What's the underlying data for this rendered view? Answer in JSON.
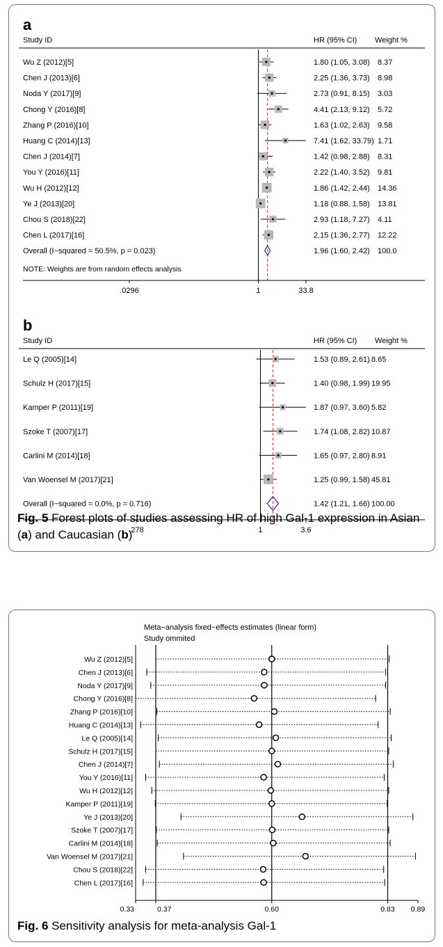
{
  "figure5": {
    "caption": {
      "figure_label": "Fig. 5",
      "parts": [
        {
          "text": "Forest plots of studies assessing HR of high Gal-1 expression in Asian (",
          "bold": false
        },
        {
          "text": "a",
          "bold": true
        },
        {
          "text": ") and Caucasian (",
          "bold": false
        },
        {
          "text": "b",
          "bold": true
        },
        {
          "text": ")",
          "bold": false
        }
      ]
    },
    "panels": [
      {
        "label": "a",
        "header_study": "Study  ID",
        "header_hr": "HR (95% CI)",
        "header_weight": "Weight %",
        "note": "NOTE: Weights are from random effects analysis",
        "axis_ticks": [
          ".0296",
          "1",
          "33.8"
        ],
        "studies": [
          {
            "name": "Wu Z (2012)[5]",
            "ci_text": "1.80 (1.05, 3.08)",
            "weight_text": "8.37"
          },
          {
            "name": "Chen J (2013)[6]",
            "ci_text": "2.25 (1.36, 3.73)",
            "weight_text": "8.98"
          },
          {
            "name": "Noda Y (2017)[9]",
            "ci_text": "2.73 (0.91, 8.15)",
            "weight_text": "3.03"
          },
          {
            "name": "Chong Y (2016)[8]",
            "ci_text": "4.41 (2.13, 9.12)",
            "weight_text": "5.72"
          },
          {
            "name": "Zhang P (2016)[10]",
            "ci_text": "1.63 (1.02, 2.63)",
            "weight_text": "9.58"
          },
          {
            "name": "Huang C (2014)[13]",
            "ci_text": "7.41 (1.62, 33.79)",
            "weight_text": "1.71"
          },
          {
            "name": "Chen J (2014)[7]",
            "ci_text": "1.42 (0.98, 2.88)",
            "weight_text": "8.31"
          },
          {
            "name": "You Y (2016)[11]",
            "ci_text": "2.22 (1.40, 3.52)",
            "weight_text": "9.81"
          },
          {
            "name": "Wu H (2012)[12]",
            "ci_text": "1.86 (1.42, 2.44)",
            "weight_text": "14.36"
          },
          {
            "name": "Ye J (2013)[20]",
            "ci_text": "1.18 (0.88, 1.58)",
            "weight_text": "13.81"
          },
          {
            "name": "Chou S (2018)[22]",
            "ci_text": "2.93 (1.18, 7.27)",
            "weight_text": "4.11"
          },
          {
            "name": "Chen L (2017)[16]",
            "ci_text": "2.15 (1.36, 2.77)",
            "weight_text": "12.22"
          }
        ],
        "overall": {
          "name": "Overall  (I−squared = 50.5%, p = 0.023)",
          "ci_text": "1.96 (1.60, 2.42)",
          "weight_text": "100.0"
        }
      },
      {
        "label": "b",
        "header_study": "Study  ID",
        "header_hr": "HR (95% CI)",
        "header_weight": "Weight %",
        "note": "",
        "axis_ticks": [
          ".278",
          "1",
          "3.6"
        ],
        "studies": [
          {
            "name": "Le Q (2005)[14]",
            "ci_text": "1.53 (0.89, 2.61)",
            "weight_text": "8.65"
          },
          {
            "name": "Schulz H (2017)[15]",
            "ci_text": "1.40 (0.98, 1.99)",
            "weight_text": "19.95"
          },
          {
            "name": "Kamper P (2011)[19]",
            "ci_text": "1.87 (0.97, 3.60)",
            "weight_text": "5.82"
          },
          {
            "name": "Szoke T (2007)[17]",
            "ci_text": "1.74 (1.08, 2.82)",
            "weight_text": "10.87"
          },
          {
            "name": "Carlini M (2014)[18]",
            "ci_text": "1.65 (0.97, 2.80)",
            "weight_text": "8.91"
          },
          {
            "name": "Van Woensel M (2017)[21]",
            "ci_text": "1.25 (0.99, 1.58)",
            "weight_text": "45.81"
          }
        ],
        "overall": {
          "name": "Overall  (I−squared = 0.0%, p = 0.716)",
          "ci_text": "1.42 (1.21, 1.66)",
          "weight_text": "100.00"
        }
      }
    ]
  },
  "figure6": {
    "caption": {
      "figure_label": "Fig. 6",
      "text": "Sensitivity analysis for meta-analysis Gal-1"
    },
    "title_line1": "Meta−analysis fixed−effects estimates (linear form)",
    "title_line2": "Study ommited"
  },
  "chart_data": [
    {
      "type": "forest",
      "panel": "a",
      "scale": "log",
      "xlim": [
        0.0296,
        33.8
      ],
      "reference_line": 1,
      "overall_line": 1.96,
      "categories": [
        "Wu Z (2012)[5]",
        "Chen J (2013)[6]",
        "Noda Y (2017)[9]",
        "Chong Y (2016)[8]",
        "Zhang P (2016)[10]",
        "Huang C (2014)[13]",
        "Chen J (2014)[7]",
        "You Y (2016)[11]",
        "Wu H (2012)[12]",
        "Ye J (2013)[20]",
        "Chou S (2018)[22]",
        "Chen L (2017)[16]"
      ],
      "hr": [
        1.8,
        2.25,
        2.73,
        4.41,
        1.63,
        7.41,
        1.42,
        2.22,
        1.86,
        1.18,
        2.93,
        2.15
      ],
      "lower": [
        1.05,
        1.36,
        0.91,
        2.13,
        1.02,
        1.62,
        0.98,
        1.4,
        1.42,
        0.88,
        1.18,
        1.36
      ],
      "upper": [
        3.08,
        3.73,
        8.15,
        9.12,
        2.63,
        33.79,
        2.88,
        3.52,
        2.44,
        1.58,
        7.27,
        2.77
      ],
      "weight": [
        8.37,
        8.98,
        3.03,
        5.72,
        9.58,
        1.71,
        8.31,
        9.81,
        14.36,
        13.81,
        4.11,
        12.22
      ],
      "overall": {
        "hr": 1.96,
        "lower": 1.6,
        "upper": 2.42,
        "weight": 100.0
      }
    },
    {
      "type": "forest",
      "panel": "b",
      "scale": "log",
      "xlim": [
        0.278,
        3.6
      ],
      "reference_line": 1,
      "overall_line": 1.42,
      "categories": [
        "Le Q (2005)[14]",
        "Schulz H (2017)[15]",
        "Kamper P (2011)[19]",
        "Szoke T (2007)[17]",
        "Carlini M (2014)[18]",
        "Van Woensel M (2017)[21]"
      ],
      "hr": [
        1.53,
        1.4,
        1.87,
        1.74,
        1.65,
        1.25
      ],
      "lower": [
        0.89,
        0.98,
        0.97,
        1.08,
        0.97,
        0.99
      ],
      "upper": [
        2.61,
        1.99,
        3.6,
        2.82,
        2.8,
        1.58
      ],
      "weight": [
        8.65,
        19.95,
        5.82,
        10.87,
        8.91,
        45.81
      ],
      "overall": {
        "hr": 1.42,
        "lower": 1.21,
        "upper": 1.66,
        "weight": 100.0
      }
    },
    {
      "type": "sensitivity",
      "title": "Meta−analysis fixed−effects estimates (linear form)",
      "subtitle": "Study ommited",
      "xlim": [
        0.33,
        0.89
      ],
      "x_ticks": [
        0.33,
        0.37,
        0.6,
        0.83,
        0.89
      ],
      "x_tick_labels": [
        "0.33",
        "0.37",
        "0.60",
        "0.83",
        "0.89"
      ],
      "reference_lines": [
        0.37,
        0.6,
        0.83
      ],
      "categories": [
        "Wu Z (2012)[5]",
        "Chen J (2013)[6]",
        "Noda Y (2017)[9]",
        "Chong Y (2016)[8]",
        "Zhang P (2016)[10]",
        "Huang C (2014)[13]",
        "Le Q (2005)[14]",
        "Schulz H (2017)[15]",
        "Chen J (2014)[7]",
        "You Y (2016)[11]",
        "Wu H (2012)[12]",
        "Kamper P (2011)[19]",
        "Ye J (2013)[20]",
        "Szoke T (2007)[17]",
        "Carlini M (2014)[18]",
        "Van Woensel M (2017)[21]",
        "Chou S (2018)[22]",
        "Chen L (2017)[16]"
      ],
      "estimate": [
        0.6,
        0.585,
        0.585,
        0.565,
        0.605,
        0.575,
        0.608,
        0.6,
        0.612,
        0.584,
        0.598,
        0.6,
        0.66,
        0.601,
        0.603,
        0.667,
        0.583,
        0.584
      ],
      "lower": [
        0.37,
        0.352,
        0.36,
        0.33,
        0.372,
        0.34,
        0.375,
        0.37,
        0.377,
        0.35,
        0.362,
        0.369,
        0.42,
        0.371,
        0.373,
        0.425,
        0.35,
        0.345
      ],
      "upper": [
        0.833,
        0.826,
        0.826,
        0.806,
        0.835,
        0.811,
        0.837,
        0.832,
        0.841,
        0.823,
        0.832,
        0.829,
        0.88,
        0.832,
        0.835,
        0.885,
        0.822,
        0.824
      ]
    }
  ]
}
